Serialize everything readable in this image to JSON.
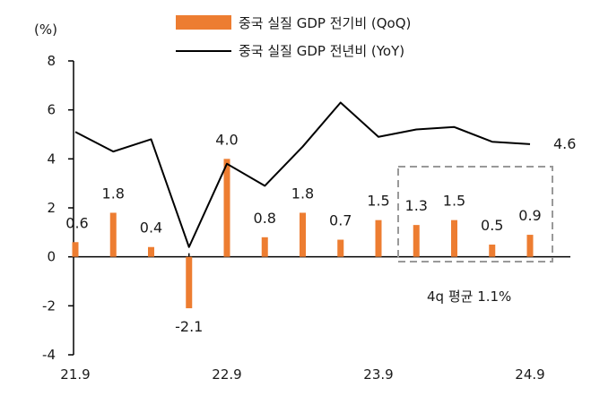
{
  "chart_data": {
    "type": "bar+line",
    "unit_label": "(%)",
    "yticks": [
      "8",
      "6",
      "4",
      "2",
      "0",
      "-2",
      "-4"
    ],
    "ylim": [
      -4,
      8
    ],
    "x_tick_labels": [
      "21.9",
      "22.9",
      "23.9",
      "24.9"
    ],
    "x": [
      "21.9",
      "21.12",
      "22.3",
      "22.6",
      "22.9",
      "22.12",
      "23.3",
      "23.6",
      "23.9",
      "23.12",
      "24.3",
      "24.6",
      "24.9"
    ],
    "series": [
      {
        "name": "중국 실질 GDP 전기비 (QoQ)",
        "type": "bar",
        "color": "#ED7D31",
        "values": [
          0.6,
          1.8,
          0.4,
          -2.1,
          4.0,
          0.8,
          1.8,
          0.7,
          1.5,
          1.3,
          1.5,
          0.5,
          0.9
        ],
        "labels": [
          "0.6",
          "1.8",
          "0.4",
          "-2.1",
          "4.0",
          "0.8",
          "1.8",
          "0.7",
          "1.5",
          "1.3",
          "1.5",
          "0.5",
          "0.9"
        ]
      },
      {
        "name": "중국 실질 GDP 전년비 (YoY)",
        "type": "line",
        "color": "#000000",
        "values": [
          5.1,
          4.3,
          4.8,
          0.4,
          3.8,
          2.9,
          4.5,
          6.3,
          4.9,
          5.2,
          5.3,
          4.7,
          4.6
        ],
        "end_label": "4.6"
      }
    ],
    "annotation": {
      "text": "4q 평균 1.1%",
      "border_color": "#999999",
      "style": "dashed"
    },
    "grid": false,
    "legend_position": "top-center"
  }
}
